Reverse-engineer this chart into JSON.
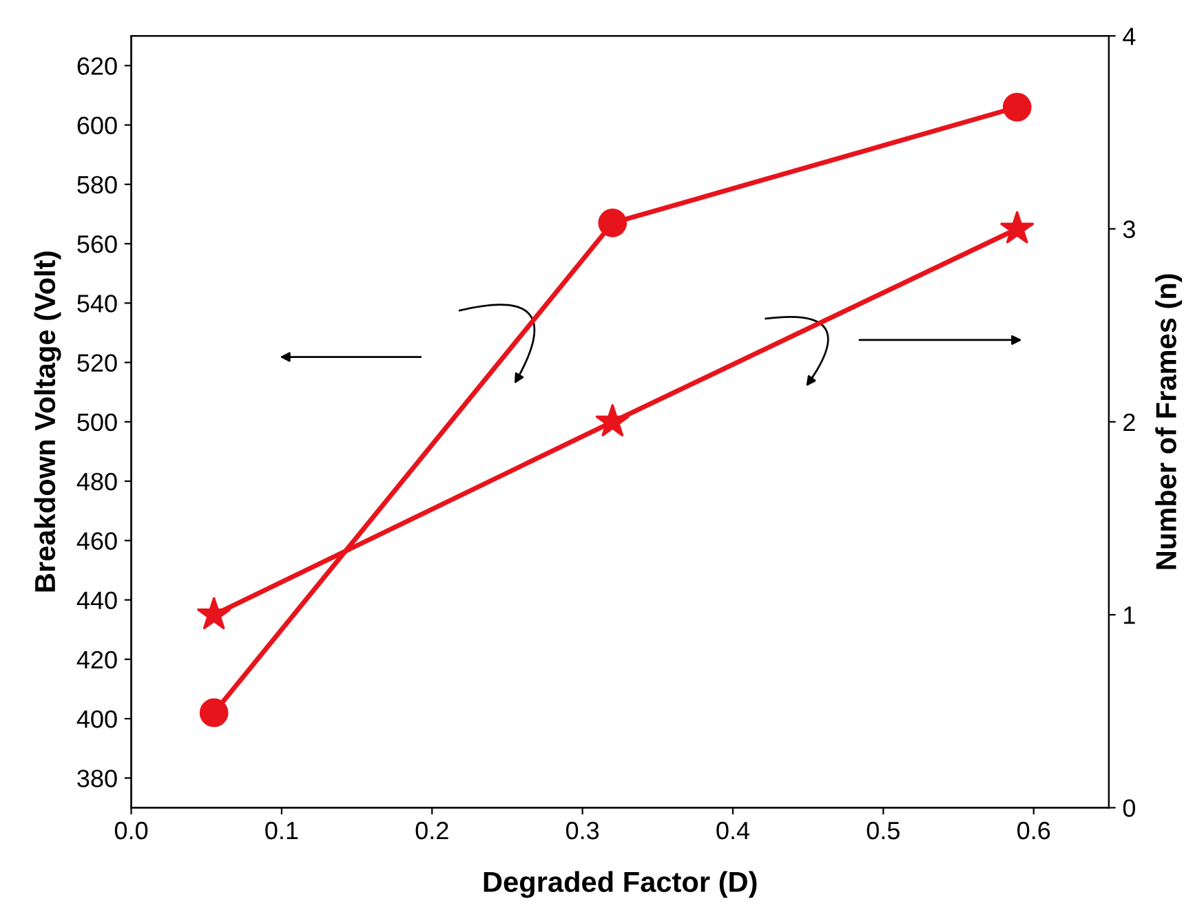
{
  "chart_data": {
    "type": "line",
    "xlabel": "Degraded Factor (D)",
    "ylabel": "Breakdown Voltage (Volt)",
    "y2label": "Number of Frames (n)",
    "x": [
      0.055,
      0.32,
      0.589
    ],
    "series": [
      {
        "color": "#e8141c",
        "values": [
          402,
          567,
          606
        ],
        "marker": "circle"
      },
      {
        "color": "#e8141c",
        "values": [
          1,
          2,
          3
        ],
        "marker": "star",
        "axis": "y2"
      }
    ],
    "xlim": [
      0.0,
      0.65
    ],
    "xticks": [
      {
        "value": 0.0,
        "label": "0.0"
      },
      0.1,
      0.2,
      0.3,
      0.4,
      0.5,
      0.6
    ],
    "ylim": [
      370,
      630
    ],
    "yticks": [
      380,
      400,
      420,
      440,
      460,
      480,
      500,
      520,
      540,
      560,
      580,
      600,
      620
    ],
    "y2lim": [
      0,
      4
    ],
    "y2ticks": [
      0,
      1,
      2,
      3,
      4
    ],
    "grid": false,
    "legend": false,
    "line_style": "solid"
  }
}
